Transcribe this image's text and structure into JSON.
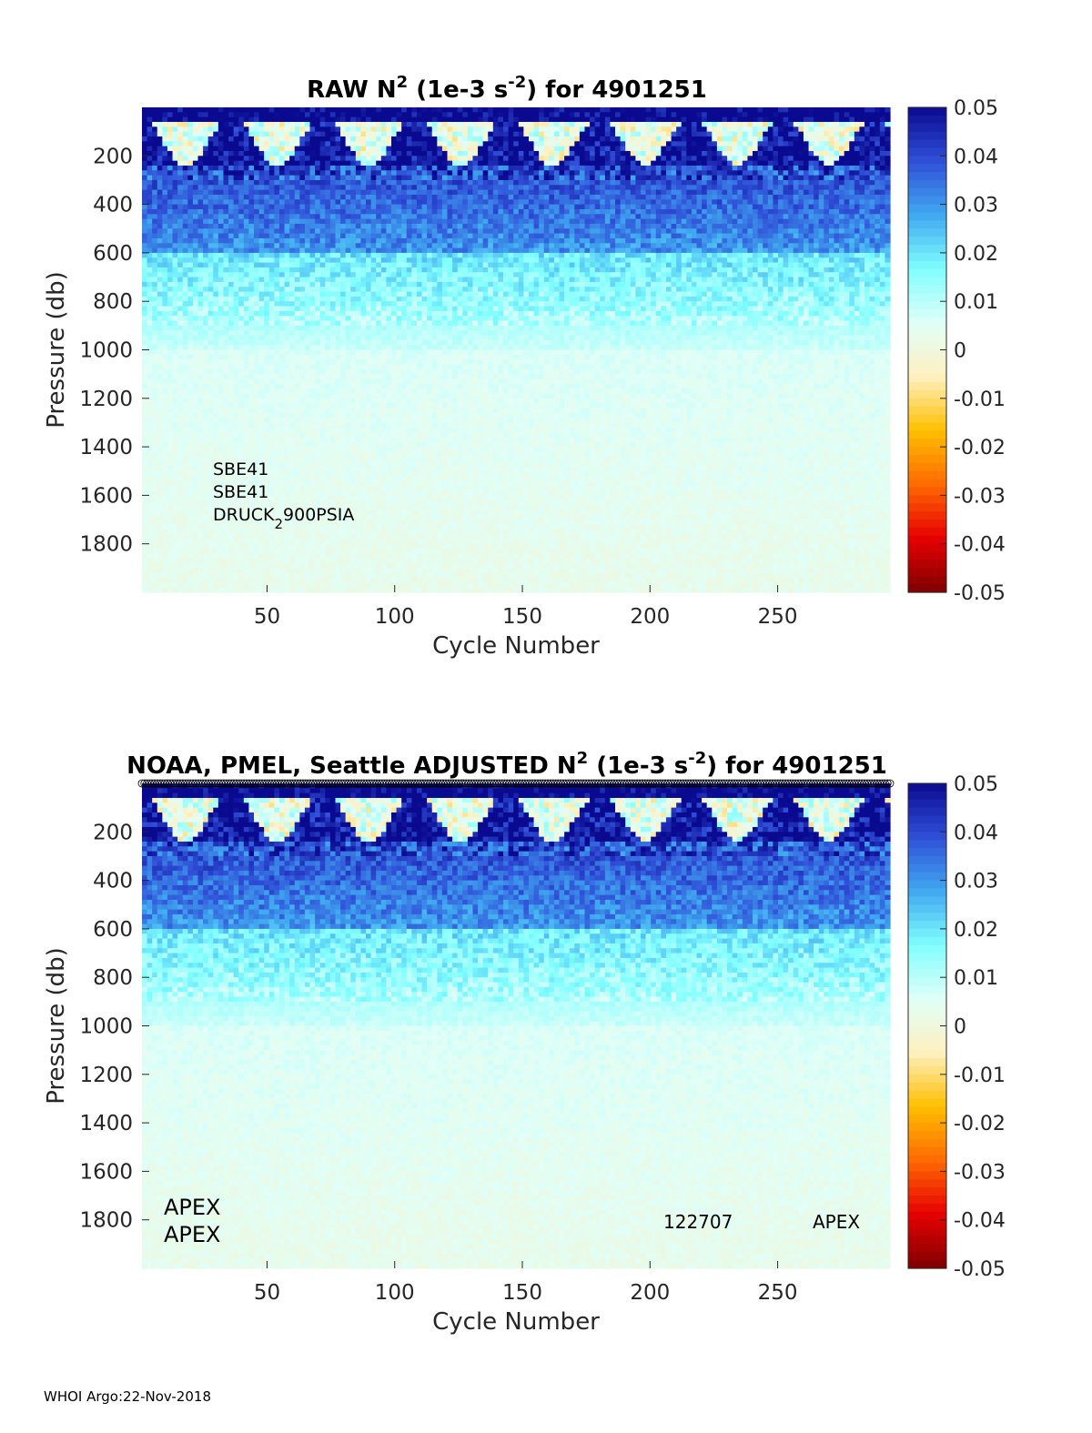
{
  "footer": "WHOI Argo:22-Nov-2018",
  "chart_data": [
    {
      "type": "heatmap",
      "title_parts": [
        "RAW N",
        "2",
        " (1e-3 s",
        "-2",
        ") for 4901251"
      ],
      "xlabel": "Cycle Number",
      "ylabel": "Pressure (db)",
      "xlim": [
        1,
        294
      ],
      "ylim": [
        0,
        2000
      ],
      "y_reversed": true,
      "xticks": [
        50,
        100,
        150,
        200,
        250
      ],
      "yticks": [
        200,
        400,
        600,
        800,
        1000,
        1200,
        1400,
        1600,
        1800
      ],
      "colorbar": {
        "min": -0.05,
        "max": 0.05,
        "ticks": [
          0.05,
          0.04,
          0.03,
          0.02,
          0.01,
          0,
          -0.01,
          -0.02,
          -0.03,
          -0.04,
          -0.05
        ],
        "tick_labels": [
          "0.05",
          "0.04",
          "0.03",
          "0.02",
          "0.01",
          "0",
          "-0.01",
          "-0.02",
          "-0.03",
          "-0.04",
          "-0.05"
        ]
      },
      "field_summary": {
        "surface_layer_value": 0.05,
        "mid_value_at_400db": 0.03,
        "deep_value": 0.006
      },
      "annotations": [
        "SBE41",
        "SBE41",
        "DRUCK",
        "2",
        "900PSIA"
      ]
    },
    {
      "type": "heatmap",
      "title_parts": [
        "NOAA, PMEL, Seattle  ADJUSTED N",
        "2",
        " (1e-3 s",
        "-2",
        ") for 4901251"
      ],
      "xlabel": "Cycle Number",
      "ylabel": "Pressure (db)",
      "xlim": [
        1,
        294
      ],
      "ylim": [
        0,
        2000
      ],
      "y_reversed": true,
      "xticks": [
        50,
        100,
        150,
        200,
        250
      ],
      "yticks": [
        200,
        400,
        600,
        800,
        1000,
        1200,
        1400,
        1600,
        1800
      ],
      "colorbar": {
        "min": -0.05,
        "max": 0.05,
        "ticks": [
          0.05,
          0.04,
          0.03,
          0.02,
          0.01,
          0,
          -0.01,
          -0.02,
          -0.03,
          -0.04,
          -0.05
        ],
        "tick_labels": [
          "0.05",
          "0.04",
          "0.03",
          "0.02",
          "0.01",
          "0",
          "-0.01",
          "-0.02",
          "-0.03",
          "-0.04",
          "-0.05"
        ]
      },
      "field_summary": {
        "surface_layer_value": 0.05,
        "mid_value_at_400db": 0.03,
        "deep_value": 0.006
      },
      "has_top_markers": true,
      "annotations_left": [
        "APEX",
        "APEX"
      ],
      "annotations_right": [
        "122707",
        "APEX"
      ]
    }
  ],
  "colors": {
    "colormap": [
      "#7f0000",
      "#e60000",
      "#ff6a00",
      "#ffbf00",
      "#fff0c0",
      "#e0fff8",
      "#80ffff",
      "#40a8f0",
      "#3050d8",
      "#0a0a90"
    ]
  }
}
